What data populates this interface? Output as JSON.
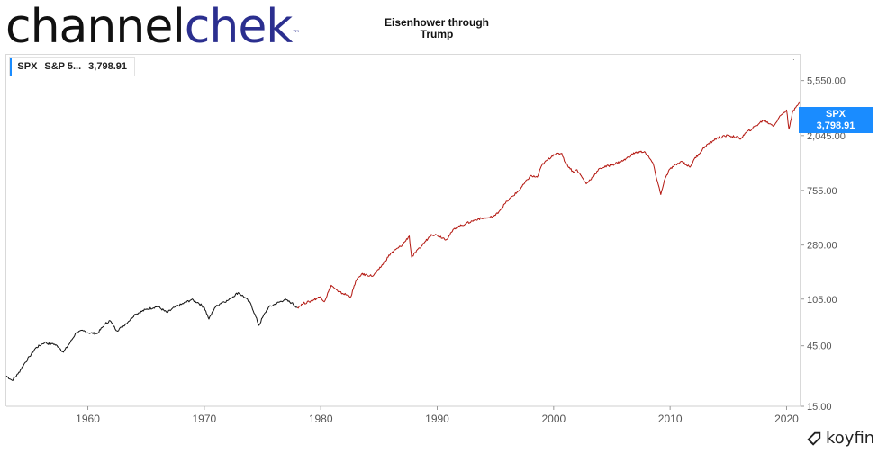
{
  "brand": {
    "part1": "channel",
    "part2": "chek",
    "tm": "™"
  },
  "chart_title": {
    "line1": "Eisenhower through",
    "line2": "Trump"
  },
  "legend": {
    "ticker": "SPX",
    "name": "S&P 5...",
    "value": "3,798.91"
  },
  "price_flag": {
    "ticker": "SPX",
    "value": "3,798.91"
  },
  "watermark": {
    "label": "koyfin",
    "icon": "koyfin-logo-icon"
  },
  "colors": {
    "line_early": "#111111",
    "line_late": "#b3160f",
    "accent": "#1a8cff",
    "brand_blue": "#2b2f8f"
  },
  "chart_data": {
    "type": "line",
    "title": "Eisenhower through Trump",
    "yscale": "log",
    "ylim": [
      15,
      9000
    ],
    "xlim": [
      1953,
      2021.2
    ],
    "y_ticks": [
      {
        "value": 5550,
        "label": "5,550.00"
      },
      {
        "value": 2045,
        "label": "2,045.00"
      },
      {
        "value": 755,
        "label": "755.00"
      },
      {
        "value": 280,
        "label": "280.00"
      },
      {
        "value": 105,
        "label": "105.00"
      },
      {
        "value": 45,
        "label": "45.00"
      },
      {
        "value": 15,
        "label": "15.00"
      }
    ],
    "x_ticks": [
      1960,
      1970,
      1980,
      1990,
      2000,
      2010,
      2020
    ],
    "grid": false,
    "legend_position": "top-left",
    "series": [
      {
        "color": "#111111",
        "x": [
          1953.0,
          1953.5,
          1954.0,
          1954.5,
          1955.0,
          1955.5,
          1956.0,
          1956.3,
          1956.8,
          1957.0,
          1957.5,
          1957.9,
          1958.5,
          1959.0,
          1959.6,
          1960.0,
          1960.8,
          1961.5,
          1961.9,
          1962.5,
          1962.9,
          1963.5,
          1964.0,
          1965.0,
          1966.0,
          1966.8,
          1967.5,
          1968.0,
          1968.9,
          1969.5,
          1970.0,
          1970.4,
          1970.9,
          1971.5,
          1972.0,
          1972.9,
          1973.5,
          1974.0,
          1974.7,
          1975.0,
          1975.5,
          1976.0,
          1976.9,
          1977.5,
          1978.0
        ],
        "y": [
          26,
          24,
          27,
          32,
          37,
          43,
          46,
          48,
          46,
          47,
          44,
          40,
          48,
          57,
          59,
          57,
          56,
          67,
          71,
          59,
          63,
          70,
          79,
          87,
          92,
          82,
          91,
          95,
          104,
          98,
          90,
          73,
          90,
          99,
          102,
          118,
          108,
          96,
          65,
          75,
          90,
          95,
          104,
          98,
          90
        ]
      },
      {
        "color": "#b3160f",
        "x": [
          1978.0,
          1978.5,
          1979.0,
          1980.0,
          1980.3,
          1980.9,
          1981.5,
          1982.6,
          1983.0,
          1983.5,
          1984.5,
          1985.0,
          1986.0,
          1987.0,
          1987.6,
          1987.8,
          1988.5,
          1989.5,
          1990.0,
          1990.8,
          1991.5,
          1992.5,
          1993.5,
          1994.5,
          1995.0,
          1996.0,
          1997.0,
          1998.0,
          1998.6,
          1999.0,
          2000.0,
          2000.7,
          2001.0,
          2001.7,
          2002.0,
          2002.8,
          2003.5,
          2004.0,
          2005.0,
          2006.0,
          2007.0,
          2007.8,
          2008.5,
          2009.2,
          2009.5,
          2010.0,
          2011.0,
          2011.7,
          2012.0,
          2013.0,
          2014.0,
          2015.0,
          2016.1,
          2016.5,
          2017.0,
          2018.0,
          2018.9,
          2019.5,
          2020.0,
          2020.2,
          2020.5,
          2021.0,
          2021.1
        ],
        "y": [
          90,
          97,
          100,
          110,
          100,
          135,
          120,
          110,
          145,
          165,
          160,
          180,
          240,
          280,
          330,
          225,
          265,
          340,
          335,
          310,
          380,
          415,
          450,
          460,
          480,
          620,
          750,
          980,
          960,
          1200,
          1450,
          1480,
          1250,
          1050,
          1100,
          850,
          1000,
          1130,
          1200,
          1300,
          1500,
          1530,
          1250,
          700,
          900,
          1120,
          1280,
          1150,
          1300,
          1680,
          1950,
          2050,
          1940,
          2150,
          2300,
          2700,
          2450,
          2950,
          3250,
          2300,
          3100,
          3600,
          3798
        ]
      }
    ]
  }
}
